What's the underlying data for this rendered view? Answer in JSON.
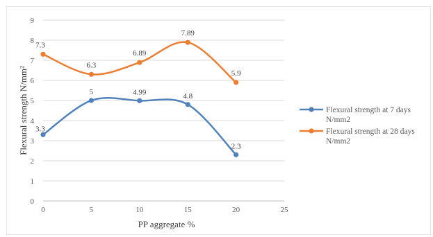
{
  "chart_data": {
    "type": "line",
    "smooth": true,
    "xlabel": "PP aggregate  %",
    "ylabel": "Flexural strength N/mm²",
    "xlim": [
      0,
      25
    ],
    "ylim": [
      0,
      9
    ],
    "x_ticks": [
      0,
      5,
      10,
      15,
      20,
      25
    ],
    "y_ticks": [
      0,
      1,
      2,
      3,
      4,
      5,
      6,
      7,
      8,
      9
    ],
    "grid": "horizontal",
    "legend_position": "right",
    "x": [
      0,
      5,
      10,
      15,
      20
    ],
    "series": [
      {
        "name": "Flexural strength at 7 days N/mm2",
        "legend_lines": [
          "Flexural strength at 7 days",
          "N/mm2"
        ],
        "color": "#4f81bd",
        "values": [
          3.3,
          5,
          4.99,
          4.8,
          2.3
        ],
        "labels": [
          "3.3",
          "5",
          "4.99",
          "4.8",
          "2.3"
        ]
      },
      {
        "name": "Flexural strength at 28 days N/mm2",
        "legend_lines": [
          "Flexural strength at 28 days",
          "N/mm2"
        ],
        "color": "#ed7d31",
        "values": [
          7.3,
          6.3,
          6.89,
          7.89,
          5.9
        ],
        "labels": [
          "7.3",
          "6.3",
          "6.89",
          "7.89",
          "5.9"
        ]
      }
    ]
  }
}
